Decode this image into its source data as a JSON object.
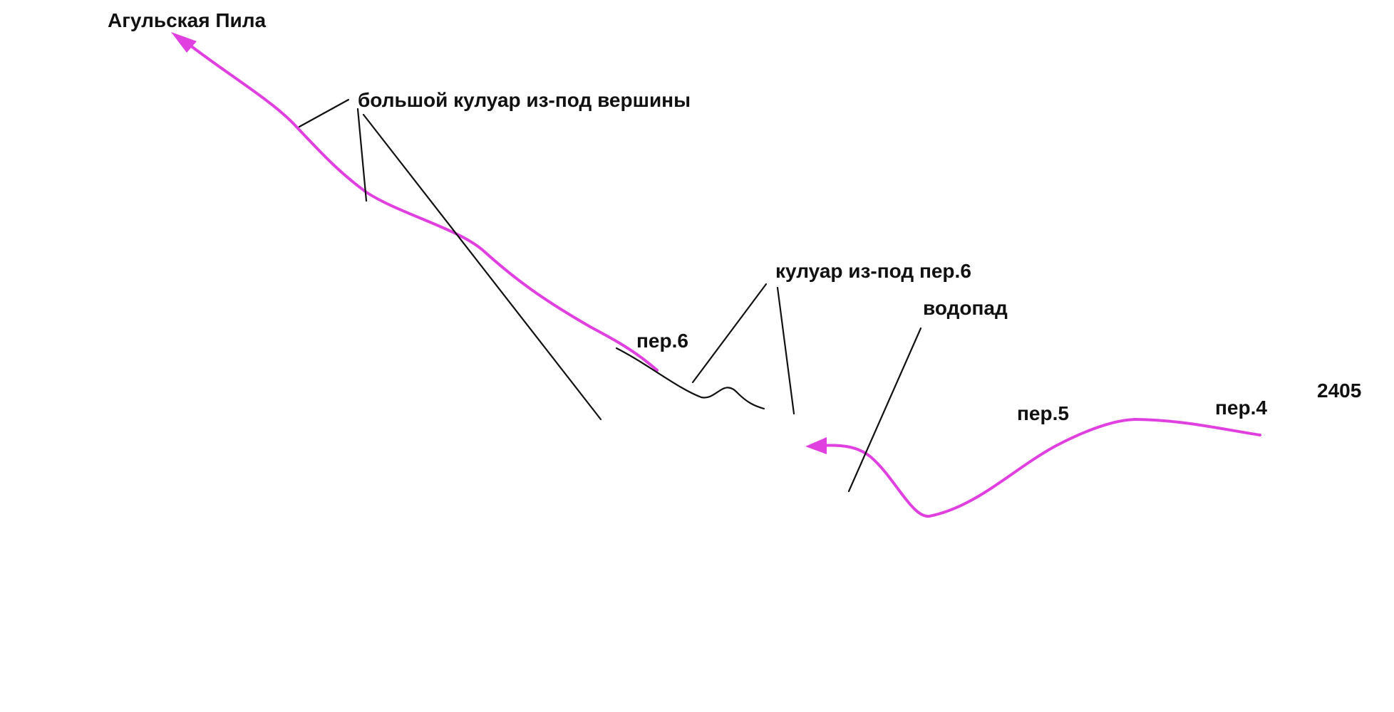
{
  "labels": {
    "peak": "Агульская Пила",
    "big_couloir": "большой кулуар из-под вершины",
    "couloir_6": "кулуар из-под пер.6",
    "waterfall": "водопад",
    "step_6": "пер.6",
    "step_5": "пер.5",
    "step_4": "пер.4",
    "height": "2405"
  }
}
